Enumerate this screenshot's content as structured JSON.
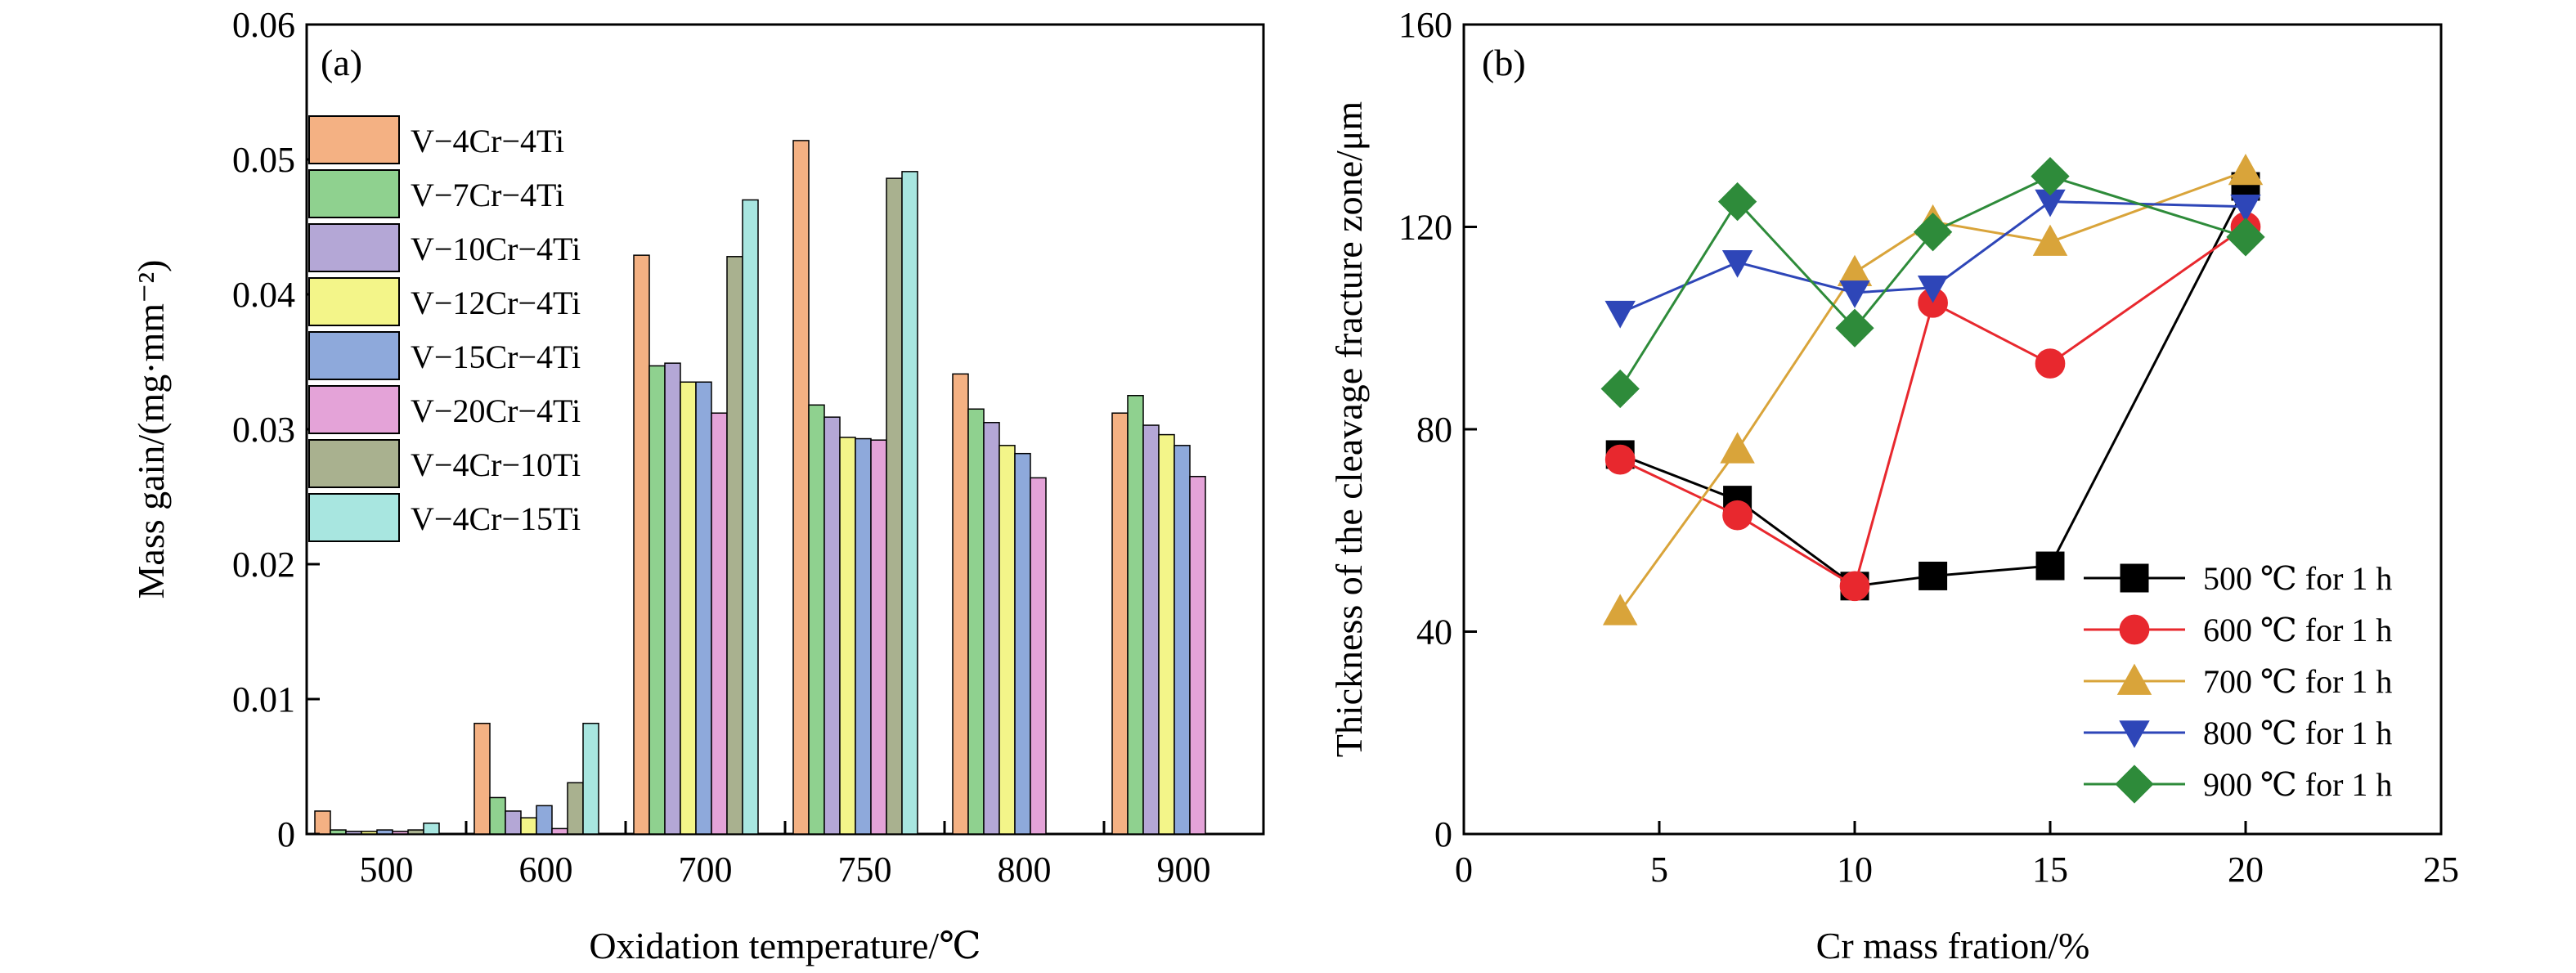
{
  "chart_data": [
    {
      "type": "bar",
      "panel_label": "(a)",
      "xlabel": "Oxidation temperature/℃",
      "ylabel": "Mass gain/(mg·mm⁻²)",
      "ylim": [
        0,
        0.06
      ],
      "yticks": [
        "0",
        "0.01",
        "0.02",
        "0.03",
        "0.04",
        "0.05",
        "0.06"
      ],
      "categories": [
        "500",
        "600",
        "700",
        "750",
        "800",
        "900"
      ],
      "legend_position": "upper-left",
      "grid": false,
      "series": [
        {
          "name": "V−4Cr−4Ti",
          "color": "#F4B183",
          "values": [
            0.0017,
            0.0082,
            0.0429,
            0.0514,
            0.0341,
            0.0312
          ]
        },
        {
          "name": "V−7Cr−4Ti",
          "color": "#8FD18F",
          "values": [
            0.0003,
            0.0027,
            0.0347,
            0.0318,
            0.0315,
            0.0325
          ]
        },
        {
          "name": "V−10Cr−4Ti",
          "color": "#B4A7D6",
          "values": [
            0.0002,
            0.0017,
            0.0349,
            0.0309,
            0.0305,
            0.0303
          ]
        },
        {
          "name": "V−12Cr−4Ti",
          "color": "#F3F589",
          "values": [
            0.0002,
            0.0012,
            0.0335,
            0.0294,
            0.0288,
            0.0296
          ]
        },
        {
          "name": "V−15Cr−4Ti",
          "color": "#8EA9DB",
          "values": [
            0.0003,
            0.0021,
            0.0335,
            0.0293,
            0.0282,
            0.0288
          ]
        },
        {
          "name": "V−20Cr−4Ti",
          "color": "#E4A3D8",
          "values": [
            0.0002,
            0.0004,
            0.0312,
            0.0292,
            0.0264,
            0.0265
          ]
        },
        {
          "name": "V−4Cr−10Ti",
          "color": "#A9B18F",
          "values": [
            0.0003,
            0.0038,
            0.0428,
            0.0486,
            null,
            null
          ]
        },
        {
          "name": "V−4Cr−15Ti",
          "color": "#A8E6E0",
          "values": [
            0.0008,
            0.0082,
            0.047,
            0.0491,
            null,
            null
          ]
        }
      ]
    },
    {
      "type": "line",
      "panel_label": "(b)",
      "xlabel": "Cr mass fration/%",
      "ylabel": "Thickness of the cleavage fracture zone/μm",
      "xlim": [
        0,
        25
      ],
      "ylim": [
        0,
        160
      ],
      "xticks": [
        "0",
        "5",
        "10",
        "15",
        "20",
        "25"
      ],
      "yticks": [
        "0",
        "40",
        "80",
        "120",
        "160"
      ],
      "x": [
        4,
        7,
        10,
        12,
        15,
        20
      ],
      "legend_position": "lower-right",
      "grid": false,
      "series": [
        {
          "name": "500 ℃ for 1 h",
          "color": "#000000",
          "line_color": "#000000",
          "marker": "square",
          "values": [
            75,
            66,
            49,
            51,
            53,
            128
          ]
        },
        {
          "name": "600 ℃ for 1 h",
          "color": "#E8282E",
          "line_color": "#E8282E",
          "marker": "circle",
          "values": [
            74,
            63,
            49,
            105,
            93,
            120
          ]
        },
        {
          "name": "700 ℃ for 1 h",
          "color": "#D9A43A",
          "line_color": "#D9A43A",
          "marker": "triangle-up",
          "values": [
            44,
            76,
            111,
            121,
            117,
            131
          ]
        },
        {
          "name": "800 ℃ for 1 h",
          "color": "#2E46B8",
          "line_color": "#2E46B8",
          "marker": "triangle-down",
          "values": [
            103,
            113,
            107,
            108,
            125,
            124
          ]
        },
        {
          "name": "900 ℃ for 1 h",
          "color": "#2E8B3A",
          "line_color": "#2E8B3A",
          "marker": "diamond",
          "values": [
            88,
            125,
            100,
            119,
            130,
            118
          ]
        }
      ]
    }
  ]
}
